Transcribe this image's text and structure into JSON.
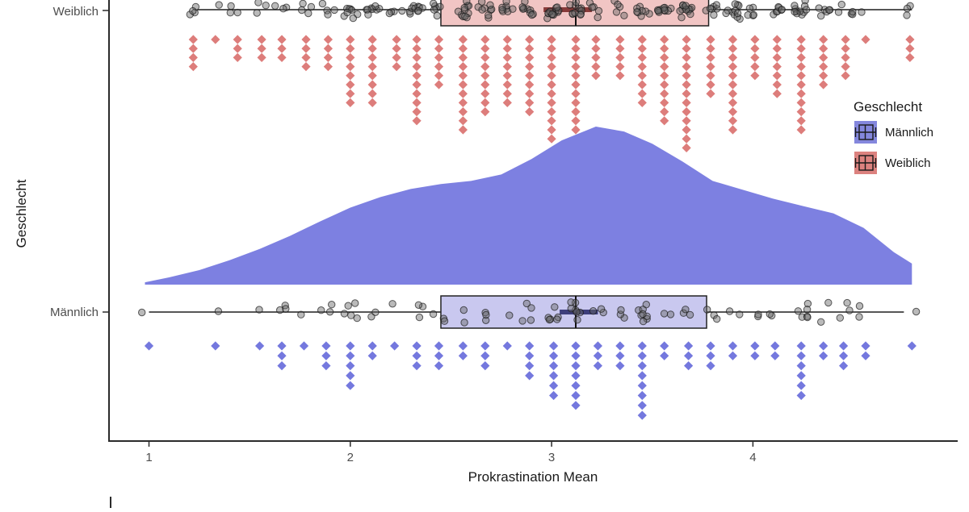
{
  "plot": {
    "x_axis": {
      "title": "Prokrastination Mean",
      "tick_values": [
        1,
        2,
        3,
        4
      ]
    },
    "y_axis": {
      "title": "Geschlecht",
      "categories": [
        "Weiblich",
        "Männlich"
      ]
    }
  },
  "legend": {
    "title": "Geschlecht",
    "items": [
      {
        "label": "Männlich",
        "color": "#8487dd"
      },
      {
        "label": "Weiblich",
        "color": "#dc827f"
      }
    ]
  },
  "colors": {
    "background": "#ffffff",
    "axis": "#2b2b2b",
    "density_fill": "#7d80e1",
    "box_fill_maennlich": "#c9c8ef",
    "box_fill_weiblich": "#f1c5c4",
    "box_stroke": "#222222",
    "diamond_maennlich": "#7478de",
    "diamond_weiblich": "#dd7d7b",
    "mean_bar_maennlich": "#2d2f6e",
    "mean_bar_weiblich": "#7c2b2b",
    "jitter_fill": "#666666",
    "jitter_stroke": "#1a1a1a"
  },
  "chart_data": {
    "type": "raincloud (half-density + boxplot + jittered points + hanging dot histogram)",
    "xlabel": "Prokrastination Mean",
    "ylabel": "Geschlecht",
    "xlim_shown": [
      0.8,
      4.85
    ],
    "top_row_cropped_at_image_top": true,
    "groups": [
      {
        "label": "Weiblich",
        "boxplot": {
          "whisker_min": 1.24,
          "q1": 2.45,
          "median": 3.12,
          "q3": 3.78,
          "whisker_max": 4.79,
          "mean_bar": [
            2.96,
            3.2
          ]
        },
        "n_points": 215,
        "dotplot_bins": [
          [
            1.22,
            4
          ],
          [
            1.33,
            1
          ],
          [
            1.44,
            3
          ],
          [
            1.56,
            3
          ],
          [
            1.66,
            3
          ],
          [
            1.78,
            4
          ],
          [
            1.89,
            4
          ],
          [
            2.0,
            8
          ],
          [
            2.11,
            8
          ],
          [
            2.23,
            4
          ],
          [
            2.33,
            10
          ],
          [
            2.44,
            6
          ],
          [
            2.56,
            11
          ],
          [
            2.67,
            9
          ],
          [
            2.78,
            8
          ],
          [
            2.89,
            9
          ],
          [
            3.0,
            12
          ],
          [
            3.12,
            11
          ],
          [
            3.22,
            5
          ],
          [
            3.34,
            5
          ],
          [
            3.45,
            8
          ],
          [
            3.56,
            10
          ],
          [
            3.67,
            13
          ],
          [
            3.79,
            7
          ],
          [
            3.9,
            11
          ],
          [
            4.01,
            5
          ],
          [
            4.12,
            7
          ],
          [
            4.24,
            11
          ],
          [
            4.35,
            6
          ],
          [
            4.46,
            5
          ],
          [
            4.56,
            1
          ],
          [
            4.78,
            3
          ]
        ]
      },
      {
        "label": "Männlich",
        "boxplot": {
          "whisker_min": 1.0,
          "q1": 2.45,
          "median": 3.12,
          "q3": 3.77,
          "whisker_max": 4.75,
          "mean_bar": [
            3.04,
            3.23
          ]
        },
        "n_points": 89,
        "density": {
          "x": [
            0.98,
            1.1,
            1.25,
            1.4,
            1.55,
            1.7,
            1.85,
            2.0,
            2.15,
            2.3,
            2.45,
            2.6,
            2.75,
            2.9,
            3.05,
            3.22,
            3.36,
            3.5,
            3.65,
            3.8,
            3.95,
            4.1,
            4.25,
            4.4,
            4.55,
            4.7,
            4.79
          ],
          "f": [
            0.015,
            0.046,
            0.092,
            0.154,
            0.226,
            0.308,
            0.4,
            0.487,
            0.554,
            0.605,
            0.636,
            0.656,
            0.697,
            0.795,
            0.913,
            1.0,
            0.969,
            0.892,
            0.779,
            0.656,
            0.6,
            0.544,
            0.497,
            0.451,
            0.359,
            0.205,
            0.133
          ],
          "right_edge_truncated": true
        },
        "dotplot_bins": [
          [
            1.0,
            1
          ],
          [
            1.33,
            1
          ],
          [
            1.55,
            1
          ],
          [
            1.66,
            3
          ],
          [
            1.77,
            1
          ],
          [
            1.88,
            3
          ],
          [
            2.0,
            5
          ],
          [
            2.11,
            2
          ],
          [
            2.22,
            1
          ],
          [
            2.33,
            3
          ],
          [
            2.44,
            3
          ],
          [
            2.56,
            2
          ],
          [
            2.67,
            3
          ],
          [
            2.78,
            1
          ],
          [
            2.89,
            4
          ],
          [
            3.01,
            6
          ],
          [
            3.12,
            7
          ],
          [
            3.23,
            3
          ],
          [
            3.34,
            3
          ],
          [
            3.45,
            8
          ],
          [
            3.56,
            2
          ],
          [
            3.68,
            3
          ],
          [
            3.79,
            3
          ],
          [
            3.9,
            2
          ],
          [
            4.01,
            2
          ],
          [
            4.11,
            2
          ],
          [
            4.24,
            6
          ],
          [
            4.35,
            2
          ],
          [
            4.45,
            3
          ],
          [
            4.56,
            2
          ],
          [
            4.79,
            1
          ]
        ]
      }
    ]
  }
}
